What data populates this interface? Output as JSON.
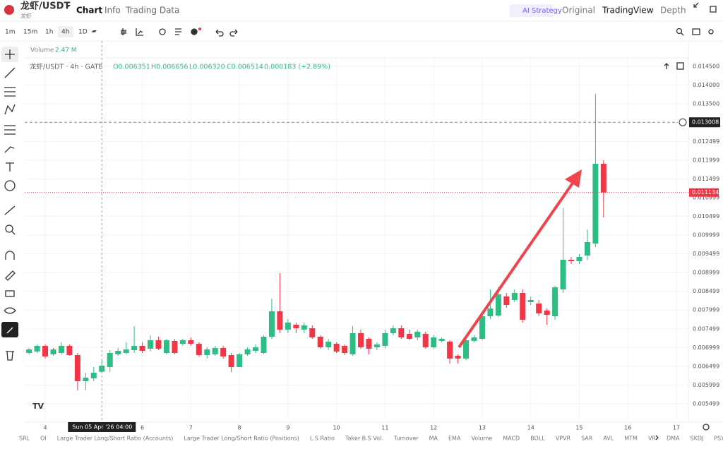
{
  "ui": {
    "pair": "龙虾/USDT",
    "pair_sub": "龙虾",
    "tabs": [
      "Chart",
      "Info",
      "Trading Data"
    ],
    "views": [
      "AI Strategy",
      "Original",
      "TradingView",
      "Depth"
    ],
    "intervals": [
      "1m",
      "15m",
      "1h",
      "4h",
      "1D"
    ],
    "indicators": [
      "SRL",
      "OI",
      "Large Trader Long/Short Ratio (Accounts)",
      "Large Trader Long/Short Ratio (Positions)",
      "L.S Ratio",
      "Taker B.S Vol.",
      "Turnover",
      "MA",
      "EMA",
      "Volume",
      "MACD",
      "BOLL",
      "VPVR",
      "SAR",
      "AVL",
      "MTM",
      "VR",
      "DMA",
      "SKDJ",
      "PSY",
      "BBI"
    ]
  },
  "chart_data": {
    "type": "candlestick",
    "volume_label": "Volume",
    "volume_value": "2.47 M",
    "legend": {
      "symbol": "龙虾/USDT · 4h · GATE",
      "open": "O0.006351",
      "high": "H0.006656",
      "low": "L0.006320",
      "close": "C0.006514",
      "change": "0.000183 (+2.89%)"
    },
    "up_color": "#2ebd85",
    "down_color": "#f23645",
    "grid": true,
    "xlim": [
      3.578,
      17.247
    ],
    "xticks": [
      4,
      6,
      7,
      8,
      9,
      10,
      11,
      12,
      13,
      14,
      15,
      16,
      17
    ],
    "ylim": [
      0.005065,
      0.014726
    ],
    "yticks": [
      {
        "value": 0.0145,
        "label": "0.014500"
      },
      {
        "value": 0.014,
        "label": "0.014000"
      },
      {
        "value": 0.0135,
        "label": "0.013500"
      },
      {
        "value": 0.012499,
        "label": "0.012499"
      },
      {
        "value": 0.011999,
        "label": "0.011999"
      },
      {
        "value": 0.011499,
        "label": "0.011499"
      },
      {
        "value": 0.010999,
        "label": "0.010999"
      },
      {
        "value": 0.010499,
        "label": "0.010499"
      },
      {
        "value": 0.009999,
        "label": "0.009999"
      },
      {
        "value": 0.009499,
        "label": "0.009499"
      },
      {
        "value": 0.008999,
        "label": "0.008999"
      },
      {
        "value": 0.008499,
        "label": "0.008499"
      },
      {
        "value": 0.007999,
        "label": "0.007999"
      },
      {
        "value": 0.007499,
        "label": "0.007499"
      },
      {
        "value": 0.006999,
        "label": "0.006999"
      },
      {
        "value": 0.006499,
        "label": "0.006499"
      },
      {
        "value": 0.005999,
        "label": "0.005999"
      },
      {
        "value": 0.005499,
        "label": "0.005499"
      }
    ],
    "last_price": {
      "value": 0.011134,
      "label": "0.011134"
    },
    "crosshair": {
      "x": 5.1667,
      "date_label": "Sun 05 Apr '26",
      "time_label": "04:00",
      "y": 0.013008,
      "y_label": "0.013008"
    },
    "x": [
      3.6667,
      3.8333,
      4,
      4.1667,
      4.3333,
      4.5,
      4.6667,
      4.8333,
      5,
      5.1667,
      5.3333,
      5.5,
      5.6667,
      5.8333,
      6,
      6.1667,
      6.3333,
      6.5,
      6.6667,
      6.8333,
      7,
      7.1667,
      7.3333,
      7.5,
      7.6667,
      7.8333,
      8,
      8.1667,
      8.3333,
      8.5,
      8.6667,
      8.8333,
      9,
      9.1667,
      9.3333,
      9.5,
      9.6667,
      9.8333,
      10,
      10.1667,
      10.3333,
      10.5,
      10.6667,
      10.8333,
      11,
      11.1667,
      11.3333,
      11.5,
      11.6667,
      11.8333,
      12,
      12.1667,
      12.3333,
      12.5,
      12.6667,
      12.8333,
      13,
      13.1667,
      13.3333,
      13.5,
      13.6667,
      13.8333,
      14,
      14.1667,
      14.3333,
      14.5,
      14.6667,
      14.8333,
      15,
      15.1667,
      15.3333,
      15.5
    ],
    "ohlc": [
      [
        0.006854,
        0.006986,
        0.006817,
        0.006948
      ],
      [
        0.006892,
        0.00708,
        0.006854,
        0.007043
      ],
      [
        0.007043,
        0.00708,
        0.006704,
        0.00676
      ],
      [
        0.006817,
        0.006986,
        0.006779,
        0.006948
      ],
      [
        0.006854,
        0.007137,
        0.006817,
        0.007043
      ],
      [
        0.007043,
        0.00708,
        0.006779,
        0.006798
      ],
      [
        0.006798,
        0.006854,
        0.005856,
        0.006101
      ],
      [
        0.006101,
        0.006327,
        0.005856,
        0.006195
      ],
      [
        0.006176,
        0.006478,
        0.006101,
        0.006327
      ],
      [
        0.006351,
        0.006656,
        0.00632,
        0.006514
      ],
      [
        0.006478,
        0.00693,
        0.006346,
        0.006854
      ],
      [
        0.006817,
        0.006986,
        0.006779,
        0.006911
      ],
      [
        0.006854,
        0.007137,
        0.006817,
        0.006948
      ],
      [
        0.00693,
        0.00757,
        0.006854,
        0.007043
      ],
      [
        0.007043,
        0.007137,
        0.006854,
        0.006911
      ],
      [
        0.006967,
        0.007325,
        0.006892,
        0.007193
      ],
      [
        0.007193,
        0.007287,
        0.00693,
        0.006967
      ],
      [
        0.006854,
        0.007231,
        0.006817,
        0.007193
      ],
      [
        0.007174,
        0.007231,
        0.006817,
        0.006854
      ],
      [
        0.007099,
        0.007231,
        0.007043,
        0.007193
      ],
      [
        0.007193,
        0.007269,
        0.007043,
        0.007099
      ],
      [
        0.007099,
        0.007137,
        0.00676,
        0.006798
      ],
      [
        0.006798,
        0.007005,
        0.006704,
        0.006948
      ],
      [
        0.006817,
        0.007043,
        0.006779,
        0.006986
      ],
      [
        0.006986,
        0.007043,
        0.006704,
        0.00676
      ],
      [
        0.006798,
        0.006854,
        0.006346,
        0.006478
      ],
      [
        0.006478,
        0.006854,
        0.006478,
        0.006817
      ],
      [
        0.006817,
        0.007005,
        0.006779,
        0.006948
      ],
      [
        0.006911,
        0.00708,
        0.006854,
        0.007005
      ],
      [
        0.006854,
        0.007325,
        0.006817,
        0.007287
      ],
      [
        0.007287,
        0.008304,
        0.007231,
        0.007965
      ],
      [
        0.007965,
        0.008982,
        0.007382,
        0.007476
      ],
      [
        0.007476,
        0.00776,
        0.007382,
        0.007664
      ],
      [
        0.007607,
        0.007664,
        0.007382,
        0.007513
      ],
      [
        0.007476,
        0.007664,
        0.007382,
        0.007589
      ],
      [
        0.007513,
        0.007589,
        0.007231,
        0.007269
      ],
      [
        0.007287,
        0.007325,
        0.006967,
        0.007005
      ],
      [
        0.007005,
        0.007231,
        0.00693,
        0.007156
      ],
      [
        0.007099,
        0.007137,
        0.006854,
        0.006892
      ],
      [
        0.007043,
        0.00708,
        0.006798,
        0.006854
      ],
      [
        0.006817,
        0.00757,
        0.006779,
        0.007382
      ],
      [
        0.007382,
        0.007476,
        0.006967,
        0.007005
      ],
      [
        0.007231,
        0.007269,
        0.006817,
        0.006967
      ],
      [
        0.007005,
        0.007137,
        0.00693,
        0.00708
      ],
      [
        0.007043,
        0.007476,
        0.006986,
        0.007382
      ],
      [
        0.007382,
        0.007589,
        0.007325,
        0.007513
      ],
      [
        0.007513,
        0.007589,
        0.007231,
        0.007269
      ],
      [
        0.007363,
        0.007476,
        0.007193,
        0.007231
      ],
      [
        0.007269,
        0.007476,
        0.007193,
        0.00742
      ],
      [
        0.007363,
        0.00742,
        0.006967,
        0.007005
      ],
      [
        0.007005,
        0.007325,
        0.006967,
        0.007269
      ],
      [
        0.007174,
        0.007269,
        0.007137,
        0.007231
      ],
      [
        0.007156,
        0.007193,
        0.006572,
        0.006704
      ],
      [
        0.006779,
        0.006817,
        0.006572,
        0.006704
      ],
      [
        0.006704,
        0.007231,
        0.00666,
        0.007193
      ],
      [
        0.007174,
        0.007325,
        0.007137,
        0.007269
      ],
      [
        0.007231,
        0.007909,
        0.007193,
        0.007833
      ],
      [
        0.007833,
        0.008549,
        0.00776,
        0.008041
      ],
      [
        0.007852,
        0.008606,
        0.007814,
        0.008417
      ],
      [
        0.008361,
        0.008455,
        0.00806,
        0.008135
      ],
      [
        0.008267,
        0.008549,
        0.00821,
        0.008455
      ],
      [
        0.008455,
        0.008549,
        0.007664,
        0.007739
      ],
      [
        0.00821,
        0.008361,
        0.008135,
        0.008267
      ],
      [
        0.008172,
        0.008267,
        0.007833,
        0.007909
      ],
      [
        0.007984,
        0.008041,
        0.007607,
        0.007871
      ],
      [
        0.007833,
        0.008644,
        0.007739,
        0.008606
      ],
      [
        0.008549,
        0.010715,
        0.008455,
        0.00934
      ],
      [
        0.00934,
        0.009415,
        0.009227,
        0.009302
      ],
      [
        0.009302,
        0.00949,
        0.009227,
        0.009415
      ],
      [
        0.009453,
        0.01015,
        0.00934,
        0.009811
      ],
      [
        0.009773,
        0.013766,
        0.00968,
        0.011901
      ],
      [
        0.011901,
        0.011999,
        0.01047,
        0.011134
      ]
    ]
  }
}
